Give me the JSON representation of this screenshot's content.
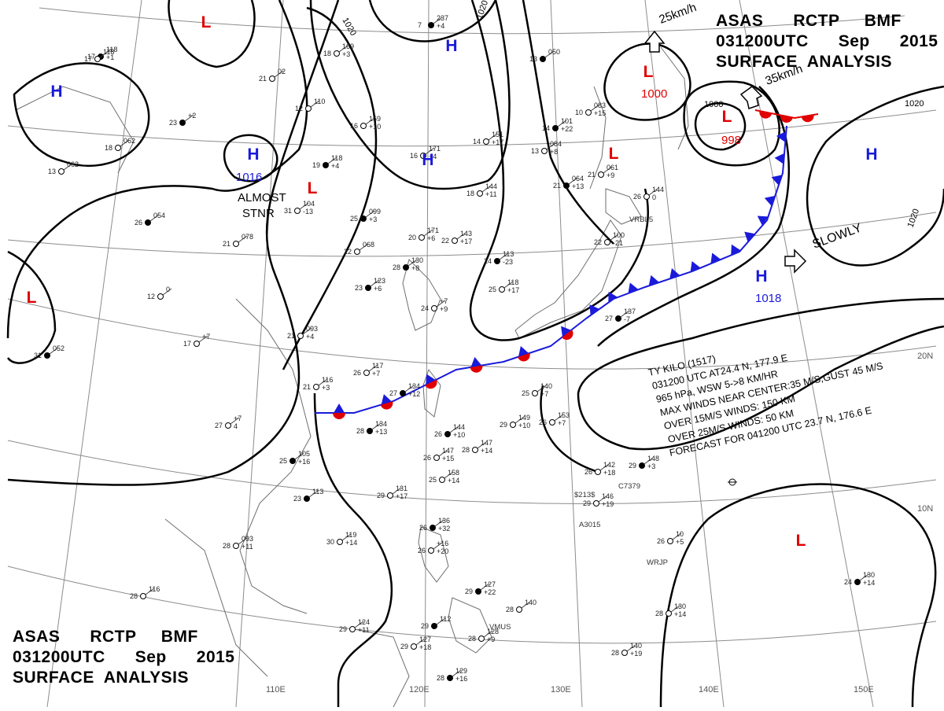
{
  "header_top": {
    "line1": "ASAS      RCTP     BMF",
    "line2": "031200UTC      Sep      2015",
    "line3": "SURFACE  ANALYSIS"
  },
  "header_bottom": {
    "line1": "ASAS      RCTP     BMF",
    "line2": "031200UTC      Sep      2015",
    "line3": "SURFACE  ANALYSIS"
  },
  "colors": {
    "high": "#1a1adb",
    "low": "#e00000",
    "isobar": "#000000",
    "grid": "#8c8c8c",
    "coast": "#6e6e6e",
    "warm_front": "#e00000",
    "cold_front": "#1a1adb"
  },
  "pressure_systems": [
    {
      "type": "L",
      "label": "L",
      "value": ""
    },
    {
      "type": "H",
      "label": "H",
      "value": ""
    },
    {
      "type": "H",
      "label": "H",
      "value": ""
    },
    {
      "type": "H",
      "label": "H",
      "value": ""
    },
    {
      "type": "H",
      "label": "H",
      "value": "1016"
    },
    {
      "type": "L",
      "label": "L",
      "value": ""
    },
    {
      "type": "L",
      "label": "L",
      "value": "1000"
    },
    {
      "type": "L",
      "label": "L",
      "value": "998"
    },
    {
      "type": "L",
      "label": "L",
      "value": ""
    },
    {
      "type": "H",
      "label": "H",
      "value": ""
    },
    {
      "type": "H",
      "label": "H",
      "value": "1018"
    },
    {
      "type": "L",
      "label": "L",
      "value": ""
    },
    {
      "type": "L",
      "label": "L",
      "value": ""
    }
  ],
  "isobar_labels": [
    "1020",
    "1020",
    "1000",
    "1020",
    "1020"
  ],
  "motion_labels": {
    "low_north": "25km/h",
    "low_typhoon": "35km/h",
    "slowly": "SLOWLY",
    "almost": "ALMOST",
    "stnr": "STNR"
  },
  "typhoon_note": {
    "title": "TY  KILO  (1517)",
    "line1": "031200 UTC  AT24.4 N, 177.9 E",
    "line2": "965 hPa, WSW  5->8 KM/HR",
    "line3": "MAX WINDS NEAR CENTER:35 M/S,GUST 45 M/S",
    "line4": "OVER 15M/S WINDS: 150 KM",
    "line5": "OVER 25M/S WINDS: 50 KM",
    "line6": "FORECAST FOR 041200 UTC 23.7 N, 176.6 E"
  },
  "grid_labels": {
    "lon": [
      "110E",
      "120E",
      "130E",
      "140E",
      "150E"
    ],
    "lat": [
      "20N",
      "10N"
    ]
  },
  "stations": [
    {
      "a": "237",
      "b": "+4",
      "c": "7"
    },
    {
      "a": "169",
      "b": "+3",
      "c": "18"
    },
    {
      "a": "02",
      "b": "",
      "c": "21"
    },
    {
      "a": "118",
      "b": "+1",
      "c": "17"
    },
    {
      "a": "110",
      "b": "",
      "c": "12"
    },
    {
      "a": "159",
      "b": "+10",
      "c": "16"
    },
    {
      "a": "050",
      "b": "",
      "c": "13"
    },
    {
      "a": "151",
      "b": "+17",
      "c": "14"
    },
    {
      "a": "084",
      "b": "+8",
      "c": "13"
    },
    {
      "a": "101",
      "b": "+22",
      "c": "14"
    },
    {
      "a": "083",
      "b": "+15",
      "c": "10"
    },
    {
      "a": "061",
      "b": "+9",
      "c": "21"
    },
    {
      "a": "064",
      "b": "+13",
      "c": "21"
    },
    {
      "a": "144",
      "b": "0",
      "c": "26"
    },
    {
      "a": "171",
      "b": "+4",
      "c": "16"
    },
    {
      "a": "118",
      "b": "+4",
      "c": "19"
    },
    {
      "a": "104",
      "b": "-13",
      "c": "31"
    },
    {
      "a": "144",
      "b": "+11",
      "c": "18"
    },
    {
      "a": "099",
      "b": "+3",
      "c": "25"
    },
    {
      "a": "078",
      "b": "",
      "c": "21"
    },
    {
      "a": "068",
      "b": "",
      "c": "22"
    },
    {
      "a": "130",
      "b": "+8",
      "c": "28"
    },
    {
      "a": "171",
      "b": "+6",
      "c": "20"
    },
    {
      "a": "143",
      "b": "+17",
      "c": "22"
    },
    {
      "a": "113",
      "b": "-23",
      "c": "24"
    },
    {
      "a": "100",
      "b": "-21",
      "c": "22"
    },
    {
      "a": "118",
      "b": "+17",
      "c": "25"
    },
    {
      "a": "123",
      "b": "+6",
      "c": "23"
    },
    {
      "a": "+7",
      "b": "+9",
      "c": "24"
    },
    {
      "a": "093",
      "b": "+4",
      "c": "21"
    },
    {
      "a": "137",
      "b": "-7",
      "c": "27"
    },
    {
      "a": "117",
      "b": "+7",
      "c": "26"
    },
    {
      "a": "116",
      "b": "+3",
      "c": "21"
    },
    {
      "a": "134",
      "b": "+13",
      "c": "28"
    },
    {
      "a": "140",
      "b": "+7",
      "c": "25"
    },
    {
      "a": "+7",
      "b": "4",
      "c": "27"
    },
    {
      "a": "134",
      "b": "+12",
      "c": "27"
    },
    {
      "a": "149",
      "b": "+10",
      "c": "29"
    },
    {
      "a": "153",
      "b": "+7",
      "c": "26"
    },
    {
      "a": "144",
      "b": "+10",
      "c": "26"
    },
    {
      "a": "147",
      "b": "+14",
      "c": "28"
    },
    {
      "a": "147",
      "b": "+15",
      "c": "26"
    },
    {
      "a": "105",
      "b": "+16",
      "c": "25"
    },
    {
      "a": "158",
      "b": "+14",
      "c": "25"
    },
    {
      "a": "142",
      "b": "+18",
      "c": "26"
    },
    {
      "a": "148",
      "b": "+3",
      "c": "29"
    },
    {
      "a": "146",
      "b": "+19",
      "c": "29"
    },
    {
      "a": "131",
      "b": "+17",
      "c": "29"
    },
    {
      "a": "113",
      "b": "",
      "c": "23"
    },
    {
      "a": "093",
      "b": "+11",
      "c": "28"
    },
    {
      "a": "119",
      "b": "+14",
      "c": "30"
    },
    {
      "a": "136",
      "b": "+32",
      "c": "26"
    },
    {
      "a": "10",
      "b": "+5",
      "c": "26"
    },
    {
      "a": "+16",
      "b": "+20",
      "c": "26"
    },
    {
      "a": "127",
      "b": "+22",
      "c": "29"
    },
    {
      "a": "140",
      "b": "",
      "c": "28"
    },
    {
      "a": "130",
      "b": "+14",
      "c": "28"
    },
    {
      "a": "130",
      "b": "+14",
      "c": "24"
    },
    {
      "a": "116",
      "b": "",
      "c": "28"
    },
    {
      "a": "124",
      "b": "+11",
      "c": "29"
    },
    {
      "a": "112",
      "b": "",
      "c": "29"
    },
    {
      "a": "127",
      "b": "+18",
      "c": "29"
    },
    {
      "a": "140",
      "b": "+19",
      "c": "28"
    },
    {
      "a": "129",
      "b": "+16",
      "c": "28"
    },
    {
      "a": "128",
      "b": "+9",
      "c": "28"
    },
    {
      "a": "118",
      "b": "",
      "c": "17"
    },
    {
      "a": "052",
      "b": "",
      "c": "31"
    },
    {
      "a": "+7",
      "b": "",
      "c": "17"
    },
    {
      "a": "0",
      "b": "",
      "c": "12"
    },
    {
      "a": "054",
      "b": "",
      "c": "26"
    },
    {
      "a": "062",
      "b": "",
      "c": "18"
    },
    {
      "a": "062",
      "b": "",
      "c": "13"
    },
    {
      "a": "+2",
      "b": "",
      "c": "23"
    }
  ],
  "station_codes": [
    "VRBL5",
    "WRJP",
    "A3015",
    "$213$",
    "C7379",
    "VMUS"
  ]
}
